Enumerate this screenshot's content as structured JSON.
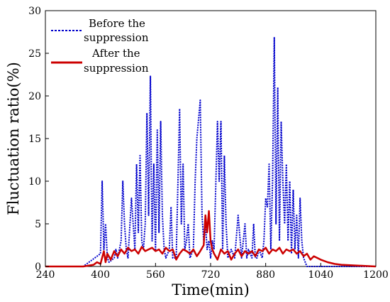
{
  "chart_data": {
    "type": "line",
    "xlabel": "Time(min)",
    "ylabel": "Fluctuation ratio(%)",
    "xlim": [
      240,
      1200
    ],
    "ylim": [
      0,
      30
    ],
    "xticks": [
      240,
      400,
      560,
      720,
      880,
      1040,
      1200
    ],
    "yticks": [
      0,
      5,
      10,
      15,
      20,
      25,
      30
    ],
    "grid": false,
    "legend_position": "top-left",
    "legend": {
      "before_line1": "Before the",
      "before_line2": "suppression",
      "after_line1": "After the",
      "after_line2": "suppression"
    },
    "series": [
      {
        "name": "Before the suppression",
        "color": "#0000cc",
        "style": "dotted",
        "x": [
          240,
          350,
          400,
          405,
          410,
          415,
          420,
          425,
          440,
          445,
          450,
          460,
          465,
          470,
          475,
          480,
          490,
          500,
          505,
          510,
          515,
          520,
          525,
          530,
          535,
          540,
          545,
          548,
          550,
          555,
          560,
          565,
          570,
          575,
          580,
          585,
          590,
          600,
          605,
          610,
          620,
          630,
          635,
          640,
          645,
          650,
          655,
          660,
          670,
          675,
          680,
          690,
          695,
          700,
          705,
          710,
          715,
          720,
          725,
          730,
          740,
          745,
          750,
          755,
          760,
          765,
          770,
          780,
          790,
          800,
          810,
          820,
          825,
          830,
          840,
          845,
          850,
          855,
          860,
          870,
          875,
          880,
          885,
          890,
          895,
          900,
          905,
          910,
          915,
          920,
          925,
          930,
          935,
          940,
          945,
          950,
          955,
          960,
          965,
          970,
          975,
          980,
          985,
          990,
          1000,
          1040,
          1100,
          1200
        ],
        "y": [
          0,
          0,
          1.5,
          10,
          2,
          5,
          1,
          0.5,
          1,
          2,
          1,
          3,
          10,
          5,
          2,
          1,
          8,
          2,
          12,
          4,
          13,
          3,
          2,
          5,
          18,
          6,
          22.3,
          10,
          3,
          12,
          2,
          16,
          4,
          17,
          6,
          2,
          1,
          2,
          7,
          1,
          1,
          18.5,
          5,
          12,
          2,
          3,
          5,
          1,
          2,
          10,
          15,
          19.5,
          6,
          3,
          5,
          2,
          3,
          1,
          3,
          2,
          17,
          10,
          17,
          2,
          13,
          5,
          1,
          2,
          1,
          6,
          1,
          5,
          1,
          2,
          1,
          5,
          1,
          1,
          2,
          1,
          3,
          8,
          7,
          12,
          2,
          10,
          26.9,
          5,
          21,
          3,
          17,
          10,
          5,
          12,
          3,
          10,
          1.5,
          9,
          2,
          6,
          1,
          8,
          3,
          1,
          0,
          0,
          0,
          0
        ]
      },
      {
        "name": "After the suppression",
        "color": "#cc0000",
        "style": "solid",
        "x": [
          240,
          350,
          380,
          390,
          400,
          410,
          415,
          420,
          430,
          440,
          450,
          460,
          470,
          480,
          490,
          500,
          510,
          520,
          530,
          540,
          550,
          560,
          570,
          580,
          590,
          600,
          610,
          620,
          630,
          640,
          650,
          660,
          670,
          680,
          690,
          700,
          705,
          710,
          715,
          720,
          725,
          730,
          740,
          750,
          760,
          770,
          780,
          790,
          800,
          810,
          820,
          830,
          840,
          850,
          860,
          870,
          880,
          890,
          900,
          910,
          920,
          930,
          940,
          950,
          960,
          970,
          980,
          990,
          1000,
          1010,
          1020,
          1040,
          1060,
          1080,
          1100,
          1200
        ],
        "y": [
          0,
          0,
          0.2,
          0.5,
          0.3,
          1.8,
          0.5,
          1.5,
          0.8,
          1.8,
          1.2,
          2,
          1.5,
          2.2,
          1.8,
          2,
          1.5,
          2.3,
          1.8,
          2,
          2.2,
          1.8,
          2,
          1.5,
          2.2,
          1.8,
          2,
          0.8,
          1.5,
          2,
          1.8,
          1.5,
          2,
          1.2,
          1.8,
          2.5,
          6,
          4,
          6.5,
          3,
          2,
          1.5,
          0.8,
          2,
          1.5,
          1.8,
          0.8,
          1.5,
          2,
          1.2,
          1.8,
          1.5,
          1.8,
          1.2,
          2,
          1.8,
          2.2,
          1.5,
          2,
          1.8,
          2.2,
          1.5,
          2,
          1.8,
          2,
          1.5,
          1.8,
          1.2,
          1.5,
          0.8,
          1.2,
          0.8,
          0.5,
          0.3,
          0.2,
          0
        ]
      }
    ]
  }
}
